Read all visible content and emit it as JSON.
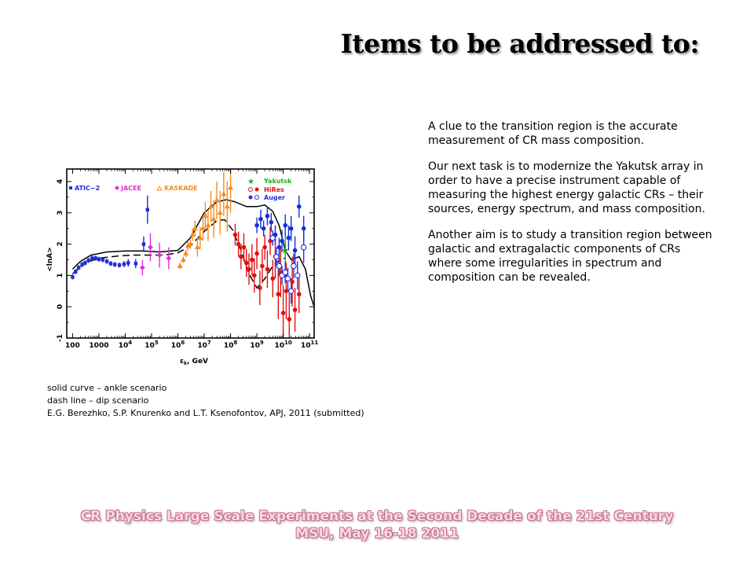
{
  "slide": {
    "title": "Items to be addressed to:"
  },
  "text_column": {
    "paragraphs": [
      "A clue to the transition region is the accurate measurement of CR mass composition.",
      "Our next task is to modernize the Yakutsk array in order to have a precise instrument capable of measuring the highest energy galactic CRs – their sources, energy spectrum, and mass composition.",
      "Another aim is to study a transition region between galactic and extragalactic components of CRs where some irregularities in spectrum and composition can be revealed."
    ]
  },
  "caption": {
    "lines": [
      "solid curve – ankle scenario",
      "dash line – dip scenario",
      "E.G. Berezhko, S.P. Knurenko and L.T. Ksenofontov, APJ, 2011 (submitted)"
    ]
  },
  "footer": {
    "line1": "CR Physics Large Scale Experiments at the Second Decade of the 21st Century",
    "line2": "MSU, May 16-18 2011"
  },
  "colors": {
    "footer_text": "#ffd6e2",
    "footer_outline": "#c06f86",
    "atic2": "#1f2bd6",
    "jacee": "#e02ee0",
    "kaskade": "#f28c1e",
    "yakutsk": "#1faa1f",
    "hires": "#e01010",
    "auger": "#2030e0",
    "yakutsk_series": "#1030d8"
  },
  "chart_data": {
    "type": "scatter",
    "title": "",
    "xlabel": "εk, GeV",
    "ylabel": "<lnA>",
    "x_scale": "log",
    "xlim": [
      60,
      150000000000.0
    ],
    "ylim": [
      -1,
      4.4
    ],
    "x_tick_labels": [
      {
        "value": 100,
        "base": "100",
        "exp": ""
      },
      {
        "value": 1000,
        "base": "1000",
        "exp": ""
      },
      {
        "value": 10000,
        "base": "10",
        "exp": "4"
      },
      {
        "value": 100000,
        "base": "10",
        "exp": "5"
      },
      {
        "value": 1000000,
        "base": "10",
        "exp": "6"
      },
      {
        "value": 10000000,
        "base": "10",
        "exp": "7"
      },
      {
        "value": 100000000,
        "base": "10",
        "exp": "8"
      },
      {
        "value": 1000000000,
        "base": "10",
        "exp": "9"
      },
      {
        "value": 10000000000,
        "base": "10",
        "exp": "10"
      },
      {
        "value": 100000000000,
        "base": "10",
        "exp": "11"
      }
    ],
    "y_ticks": [
      -1,
      0,
      1,
      2,
      3,
      4
    ],
    "y_tick_labels": [
      "-1",
      "0",
      "1",
      "2",
      "3",
      "4"
    ],
    "legend": [
      {
        "name": "ATIC−2",
        "marker": "square",
        "color": "#1f2bd6"
      },
      {
        "name": "JACEE",
        "marker": "diamond",
        "color": "#e02ee0"
      },
      {
        "name": "KASKADE",
        "marker": "triangle-open",
        "color": "#f28c1e"
      },
      {
        "name": "Yakutsk",
        "marker": "star",
        "color": "#1faa1f"
      },
      {
        "name": "HiRes",
        "marker": "circle",
        "color": "#e01010"
      },
      {
        "name": "Auger",
        "marker": "circle-open",
        "color": "#2030e0"
      }
    ],
    "curves": [
      {
        "style": "solid",
        "points": [
          [
            100,
            1.2
          ],
          [
            200,
            1.45
          ],
          [
            500,
            1.65
          ],
          [
            2000,
            1.75
          ],
          [
            10000,
            1.78
          ],
          [
            50000,
            1.78
          ],
          [
            200000,
            1.75
          ],
          [
            1000000,
            1.8
          ],
          [
            3000000,
            2.2
          ],
          [
            10000000,
            3.0
          ],
          [
            30000000,
            3.35
          ],
          [
            70000000,
            3.42
          ],
          [
            150000000,
            3.35
          ],
          [
            400000000,
            3.2
          ],
          [
            1000000000,
            3.2
          ],
          [
            2000000000,
            3.25
          ],
          [
            4000000000,
            3.05
          ],
          [
            7000000000,
            2.6
          ],
          [
            12000000000,
            1.8
          ],
          [
            20000000000,
            1.5
          ],
          [
            40000000000,
            1.6
          ],
          [
            70000000000,
            1.2
          ],
          [
            110000000000,
            0.35
          ],
          [
            150000000000,
            0.0
          ]
        ]
      },
      {
        "style": "dashed",
        "points": [
          [
            100,
            1.05
          ],
          [
            300,
            1.4
          ],
          [
            1000,
            1.55
          ],
          [
            5000,
            1.62
          ],
          [
            20000,
            1.65
          ],
          [
            100000,
            1.65
          ],
          [
            300000,
            1.65
          ],
          [
            1000000,
            1.72
          ],
          [
            3000000,
            1.95
          ],
          [
            10000000,
            2.4
          ],
          [
            30000000,
            2.75
          ],
          [
            60000000,
            2.78
          ],
          [
            120000000,
            2.45
          ],
          [
            250000000,
            1.8
          ],
          [
            500000000,
            1.05
          ],
          [
            1000000000,
            0.6
          ],
          [
            2000000000,
            0.9
          ],
          [
            4000000000,
            1.3
          ],
          [
            8000000000,
            1.52
          ],
          [
            12000000000,
            1.55
          ]
        ]
      }
    ],
    "series": [
      {
        "name": "ATIC−2",
        "marker": "square",
        "color": "#1f2bd6",
        "points": [
          {
            "x": 100,
            "y": 0.95,
            "err": 0.08
          },
          {
            "x": 130,
            "y": 1.12,
            "err": 0.08
          },
          {
            "x": 170,
            "y": 1.25,
            "err": 0.08
          },
          {
            "x": 230,
            "y": 1.35,
            "err": 0.08
          },
          {
            "x": 300,
            "y": 1.4,
            "err": 0.08
          },
          {
            "x": 400,
            "y": 1.48,
            "err": 0.08
          },
          {
            "x": 550,
            "y": 1.55,
            "err": 0.08
          },
          {
            "x": 750,
            "y": 1.55,
            "err": 0.08
          },
          {
            "x": 1000,
            "y": 1.52,
            "err": 0.08
          },
          {
            "x": 1400,
            "y": 1.5,
            "err": 0.08
          },
          {
            "x": 2000,
            "y": 1.45,
            "err": 0.08
          },
          {
            "x": 2800,
            "y": 1.38,
            "err": 0.08
          },
          {
            "x": 4000,
            "y": 1.35,
            "err": 0.08
          },
          {
            "x": 6000,
            "y": 1.33,
            "err": 0.08
          },
          {
            "x": 9000,
            "y": 1.36,
            "err": 0.1
          },
          {
            "x": 13000,
            "y": 1.4,
            "err": 0.12
          },
          {
            "x": 25000,
            "y": 1.38,
            "err": 0.15
          },
          {
            "x": 50000,
            "y": 2.0,
            "err": 0.25
          },
          {
            "x": 70000,
            "y": 3.1,
            "err": 0.45
          }
        ]
      },
      {
        "name": "JACEE",
        "marker": "diamond",
        "color": "#e02ee0",
        "points": [
          {
            "x": 45000,
            "y": 1.25,
            "err": 0.25
          },
          {
            "x": 90000,
            "y": 1.9,
            "err": 0.45
          },
          {
            "x": 200000,
            "y": 1.65,
            "err": 0.4
          },
          {
            "x": 450000,
            "y": 1.55,
            "err": 0.35
          }
        ]
      },
      {
        "name": "KASKADE",
        "marker": "triangle-open",
        "color": "#f28c1e",
        "points": [
          {
            "x": 1200000,
            "y": 1.3,
            "err": 0.1
          },
          {
            "x": 1600000,
            "y": 1.5,
            "err": 0.1
          },
          {
            "x": 2000000,
            "y": 1.7,
            "err": 0.12
          },
          {
            "x": 2400000,
            "y": 1.95,
            "err": 0.15
          },
          {
            "x": 3000000,
            "y": 2.0,
            "err": 0.15
          },
          {
            "x": 3600000,
            "y": 2.3,
            "err": 0.2
          },
          {
            "x": 4500000,
            "y": 2.5,
            "err": 0.25
          },
          {
            "x": 5500000,
            "y": 1.9,
            "err": 0.3
          },
          {
            "x": 7000000,
            "y": 2.2,
            "err": 0.35
          },
          {
            "x": 9000000,
            "y": 2.5,
            "err": 0.4
          },
          {
            "x": 11000000,
            "y": 2.9,
            "err": 0.45
          },
          {
            "x": 14000000,
            "y": 2.6,
            "err": 0.5
          },
          {
            "x": 18000000,
            "y": 3.2,
            "err": 0.5
          },
          {
            "x": 23000000,
            "y": 2.8,
            "err": 0.6
          },
          {
            "x": 30000000,
            "y": 3.4,
            "err": 0.6
          },
          {
            "x": 40000000,
            "y": 3.0,
            "err": 0.7
          },
          {
            "x": 55000000,
            "y": 3.6,
            "err": 0.7
          },
          {
            "x": 75000000,
            "y": 3.2,
            "err": 0.8
          },
          {
            "x": 100000000,
            "y": 3.8,
            "err": 0.8
          }
        ]
      },
      {
        "name": "Yakutsk",
        "marker": "star",
        "color": "#1faa1f",
        "points": [
          {
            "x": 12000000000,
            "y": 1.8,
            "err": 0.45
          }
        ]
      },
      {
        "name": "HiRes",
        "marker": "circle",
        "color": "#e01010",
        "points": [
          {
            "x": 150000000,
            "y": 2.3,
            "err": 0.35
          },
          {
            "x": 200000000,
            "y": 2.0,
            "err": 0.4
          },
          {
            "x": 250000000,
            "y": 1.6,
            "err": 0.4
          },
          {
            "x": 320000000,
            "y": 1.9,
            "err": 0.45
          },
          {
            "x": 400000000,
            "y": 1.4,
            "err": 0.45
          },
          {
            "x": 500000000,
            "y": 1.2,
            "err": 0.5
          },
          {
            "x": 650000000,
            "y": 1.5,
            "err": 0.5
          },
          {
            "x": 800000000,
            "y": 1.0,
            "err": 0.55
          },
          {
            "x": 1000000000,
            "y": 1.7,
            "err": 0.5
          },
          {
            "x": 1300000000,
            "y": 0.6,
            "err": 0.55
          },
          {
            "x": 1600000000,
            "y": 1.3,
            "err": 0.55
          },
          {
            "x": 2000000000,
            "y": 1.9,
            "err": 0.4
          },
          {
            "x": 2500000000,
            "y": 1.2,
            "err": 0.6
          },
          {
            "x": 3200000000,
            "y": 2.1,
            "err": 0.45
          },
          {
            "x": 4000000000,
            "y": 0.9,
            "err": 0.6
          },
          {
            "x": 5000000000,
            "y": 1.6,
            "err": 0.7
          },
          {
            "x": 6500000000,
            "y": 0.4,
            "err": 0.8
          },
          {
            "x": 8000000000,
            "y": 1.1,
            "err": 0.8
          },
          {
            "x": 10000000000,
            "y": -0.2,
            "err": 0.9
          },
          {
            "x": 13000000000,
            "y": 0.5,
            "err": 0.9
          },
          {
            "x": 17000000000,
            "y": -0.4,
            "err": 0.9
          },
          {
            "x": 22000000000,
            "y": 0.8,
            "err": 0.8
          },
          {
            "x": 28000000000,
            "y": -0.1,
            "err": 0.7
          },
          {
            "x": 40000000000,
            "y": 0.4,
            "err": 0.6
          }
        ]
      },
      {
        "name": "Auger",
        "marker": "circle-open",
        "color": "#2030e0",
        "points": [
          {
            "x": 4000000000,
            "y": 2.2,
            "err": 0.25
          },
          {
            "x": 5500000000,
            "y": 1.6,
            "err": 0.3
          },
          {
            "x": 7000000000,
            "y": 1.3,
            "err": 0.3
          },
          {
            "x": 9000000000,
            "y": 1.0,
            "err": 0.3
          },
          {
            "x": 12000000000,
            "y": 1.1,
            "err": 0.35
          },
          {
            "x": 15000000000,
            "y": 0.9,
            "err": 0.35
          },
          {
            "x": 20000000000,
            "y": 0.5,
            "err": 0.4
          },
          {
            "x": 25000000000,
            "y": 1.3,
            "err": 0.4
          },
          {
            "x": 35000000000,
            "y": 1.0,
            "err": 0.45
          },
          {
            "x": 60000000000,
            "y": 1.9,
            "err": 0.5
          }
        ]
      },
      {
        "name": "",
        "marker": "circle",
        "color": "#1030d8",
        "points": [
          {
            "x": 1000000000,
            "y": 2.6,
            "err": 0.25
          },
          {
            "x": 1400000000,
            "y": 2.8,
            "err": 0.3
          },
          {
            "x": 1800000000,
            "y": 2.5,
            "err": 0.25
          },
          {
            "x": 2500000000,
            "y": 2.9,
            "err": 0.3
          },
          {
            "x": 3500000000,
            "y": 2.7,
            "err": 0.3
          },
          {
            "x": 5000000000,
            "y": 2.3,
            "err": 0.3
          },
          {
            "x": 7000000000,
            "y": 1.9,
            "err": 0.3
          },
          {
            "x": 9000000000,
            "y": 2.1,
            "err": 0.35
          },
          {
            "x": 12000000000,
            "y": 2.6,
            "err": 0.35
          },
          {
            "x": 16000000000,
            "y": 2.2,
            "err": 0.4
          },
          {
            "x": 20000000000,
            "y": 2.5,
            "err": 0.4
          },
          {
            "x": 28000000000,
            "y": 1.8,
            "err": 0.45
          },
          {
            "x": 40000000000,
            "y": 3.2,
            "err": 0.35
          },
          {
            "x": 60000000000,
            "y": 2.5,
            "err": 0.4
          }
        ]
      }
    ]
  }
}
